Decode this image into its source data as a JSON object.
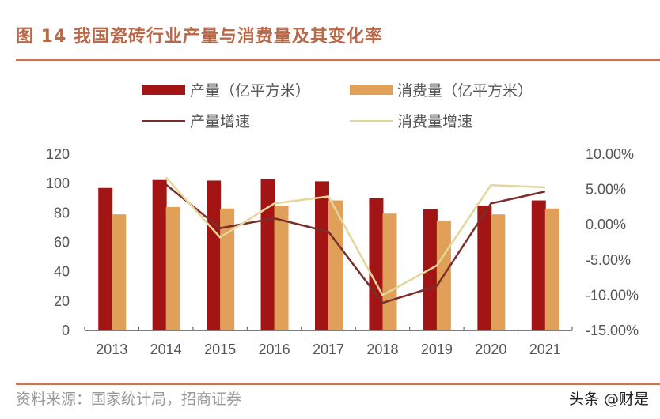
{
  "title": "图 14 我国瓷砖行业产量与消费量及其变化率",
  "source": "资料来源：国家统计局，招商证券",
  "watermark": "头条 @财是",
  "colors": {
    "production": "#a31515",
    "consumption": "#e0a05a",
    "production_growth": "#7a2e2a",
    "consumption_growth": "#e3d69a",
    "title": "#b8694a"
  },
  "chart_data": {
    "type": "bar+line",
    "categories": [
      "2013",
      "2014",
      "2015",
      "2016",
      "2017",
      "2018",
      "2019",
      "2020",
      "2021"
    ],
    "series": [
      {
        "name": "产量（亿平方米）",
        "type": "bar",
        "axis": "left",
        "values": [
          97,
          102.4,
          102,
          103,
          101.5,
          90,
          82.5,
          85,
          88.5
        ]
      },
      {
        "name": "消费量（亿平方米）",
        "type": "bar",
        "axis": "left",
        "values": [
          79,
          84,
          83,
          85,
          88.5,
          79.5,
          74.7,
          79,
          83
        ]
      },
      {
        "name": "产量增速",
        "type": "line",
        "axis": "right",
        "values": [
          null,
          5.7,
          -0.5,
          0.9,
          -1.0,
          -11.1,
          -8.7,
          3.0,
          4.7
        ]
      },
      {
        "name": "消费量增速",
        "type": "line",
        "axis": "right",
        "values": [
          null,
          6.7,
          -1.8,
          3.0,
          4.0,
          -10.0,
          -5.8,
          5.6,
          5.3
        ]
      }
    ],
    "y_left": {
      "range": [
        0,
        120
      ],
      "ticks": [
        "0",
        "20",
        "40",
        "60",
        "80",
        "100",
        "120"
      ]
    },
    "y_right": {
      "range": [
        -15,
        10
      ],
      "ticks": [
        "-15.00%",
        "-10.00%",
        "-5.00%",
        "0.00%",
        "5.00%",
        "10.00%"
      ]
    },
    "grid": false,
    "legend_position": "top"
  }
}
